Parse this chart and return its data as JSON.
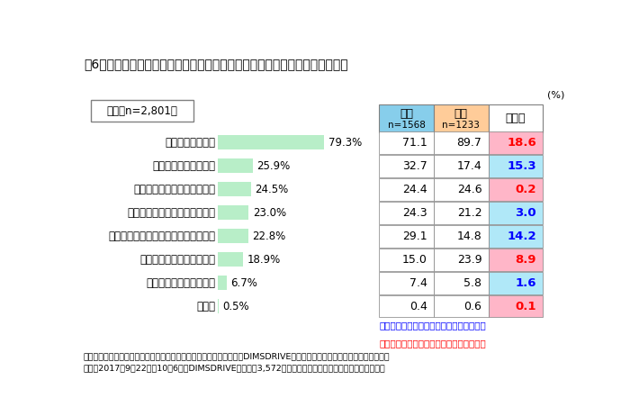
{
  "title": "表6　「あなたが飲むホットドリンクはどれが多いですか」　についての回答",
  "overall_label": "全体（n=2,801）",
  "categories": [
    "自分でいれたもの",
    "自動販売機のドリンク",
    "コーヒーチェーンのドリンク",
    "コンビニのカウンターコーヒー",
    "家族やパートナーがいれてくれたもの",
    "カフェ・コーヒーショップ",
    "勤め先にあるものを飲む",
    "その他"
  ],
  "overall_pct": [
    79.3,
    25.9,
    24.5,
    23.0,
    22.8,
    18.9,
    6.7,
    0.5
  ],
  "male_pct": [
    71.1,
    32.7,
    24.4,
    24.3,
    29.1,
    15.0,
    7.4,
    0.4
  ],
  "female_pct": [
    89.7,
    17.4,
    24.6,
    21.2,
    14.8,
    23.9,
    5.8,
    0.6
  ],
  "diff": [
    18.6,
    15.3,
    0.2,
    3.0,
    14.2,
    8.9,
    1.6,
    0.1
  ],
  "diff_color": [
    "red",
    "blue",
    "red",
    "blue",
    "blue",
    "red",
    "blue",
    "red"
  ],
  "diff_bg": [
    "#FFB6C8",
    "#B0E8F8",
    "#FFB6C8",
    "#B0E8F8",
    "#B0E8F8",
    "#FFB6C8",
    "#B0E8F8",
    "#FFB6C8"
  ],
  "bar_color": "#B8EEC8",
  "male_header_bg": "#87CEEB",
  "female_header_bg": "#FFCC99",
  "pct_label": "(%)",
  "note1": "男女差青字・・・男性のほうが数値が高い",
  "note2": "男女差赤字・・・女性のほうが数値が高い",
  "footnote": "調査機関：インターワイヤード株式会社が運営するネットリサーチ『DIMSDRIVE』実施のアンケート「ホットドリンク」。\n期間：2017年9月22日～10月6日、DIMSDRIVEモニター3,572人が回答。エピソードも同アンケートです。",
  "bg_color": "#FFFFFF"
}
